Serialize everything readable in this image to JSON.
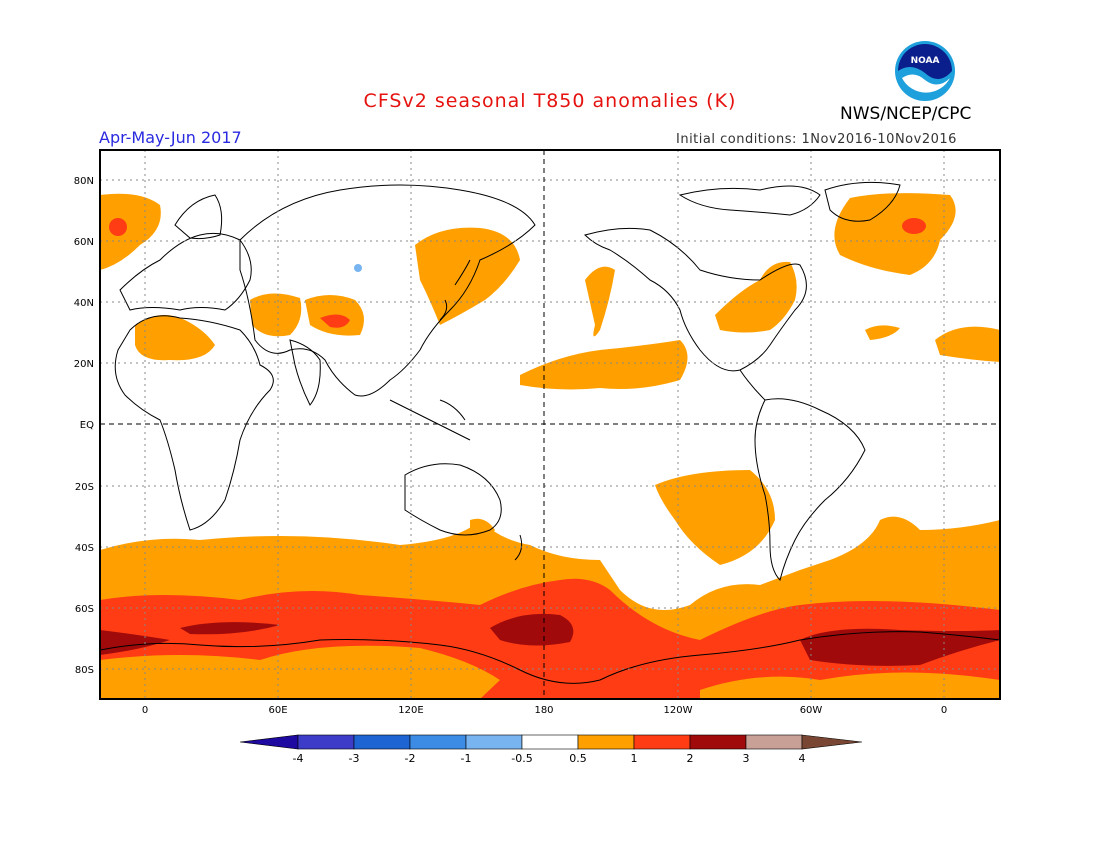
{
  "title": "CFSv2 seasonal T850 anomalies (K)",
  "agency": "NWS/NCEP/CPC",
  "logo_text": "NOAA",
  "period": "Apr-May-Jun 2017",
  "initial_conditions": "Initial conditions: 1Nov2016-10Nov2016",
  "lat_labels": [
    "80N",
    "60N",
    "40N",
    "20N",
    "EQ",
    "20S",
    "40S",
    "60S",
    "80S"
  ],
  "lon_labels": [
    "0",
    "60E",
    "120E",
    "180",
    "120W",
    "60W",
    "0"
  ],
  "colorbar": {
    "labels": [
      "-4",
      "-3",
      "-2",
      "-1",
      "-0.5",
      "0.5",
      "1",
      "2",
      "3",
      "4"
    ],
    "colors": [
      "#1e0aa0",
      "#3c3cc8",
      "#1e64d2",
      "#3c8ce6",
      "#78b4f0",
      "#ffffff",
      "#ffa000",
      "#ff3c14",
      "#a00a0a",
      "#c8a096",
      "#784632"
    ]
  },
  "palette": {
    "c05": "#ffa000",
    "c1": "#ff3c14",
    "c2": "#a00a0a",
    "neg05": "#78b4f0"
  }
}
